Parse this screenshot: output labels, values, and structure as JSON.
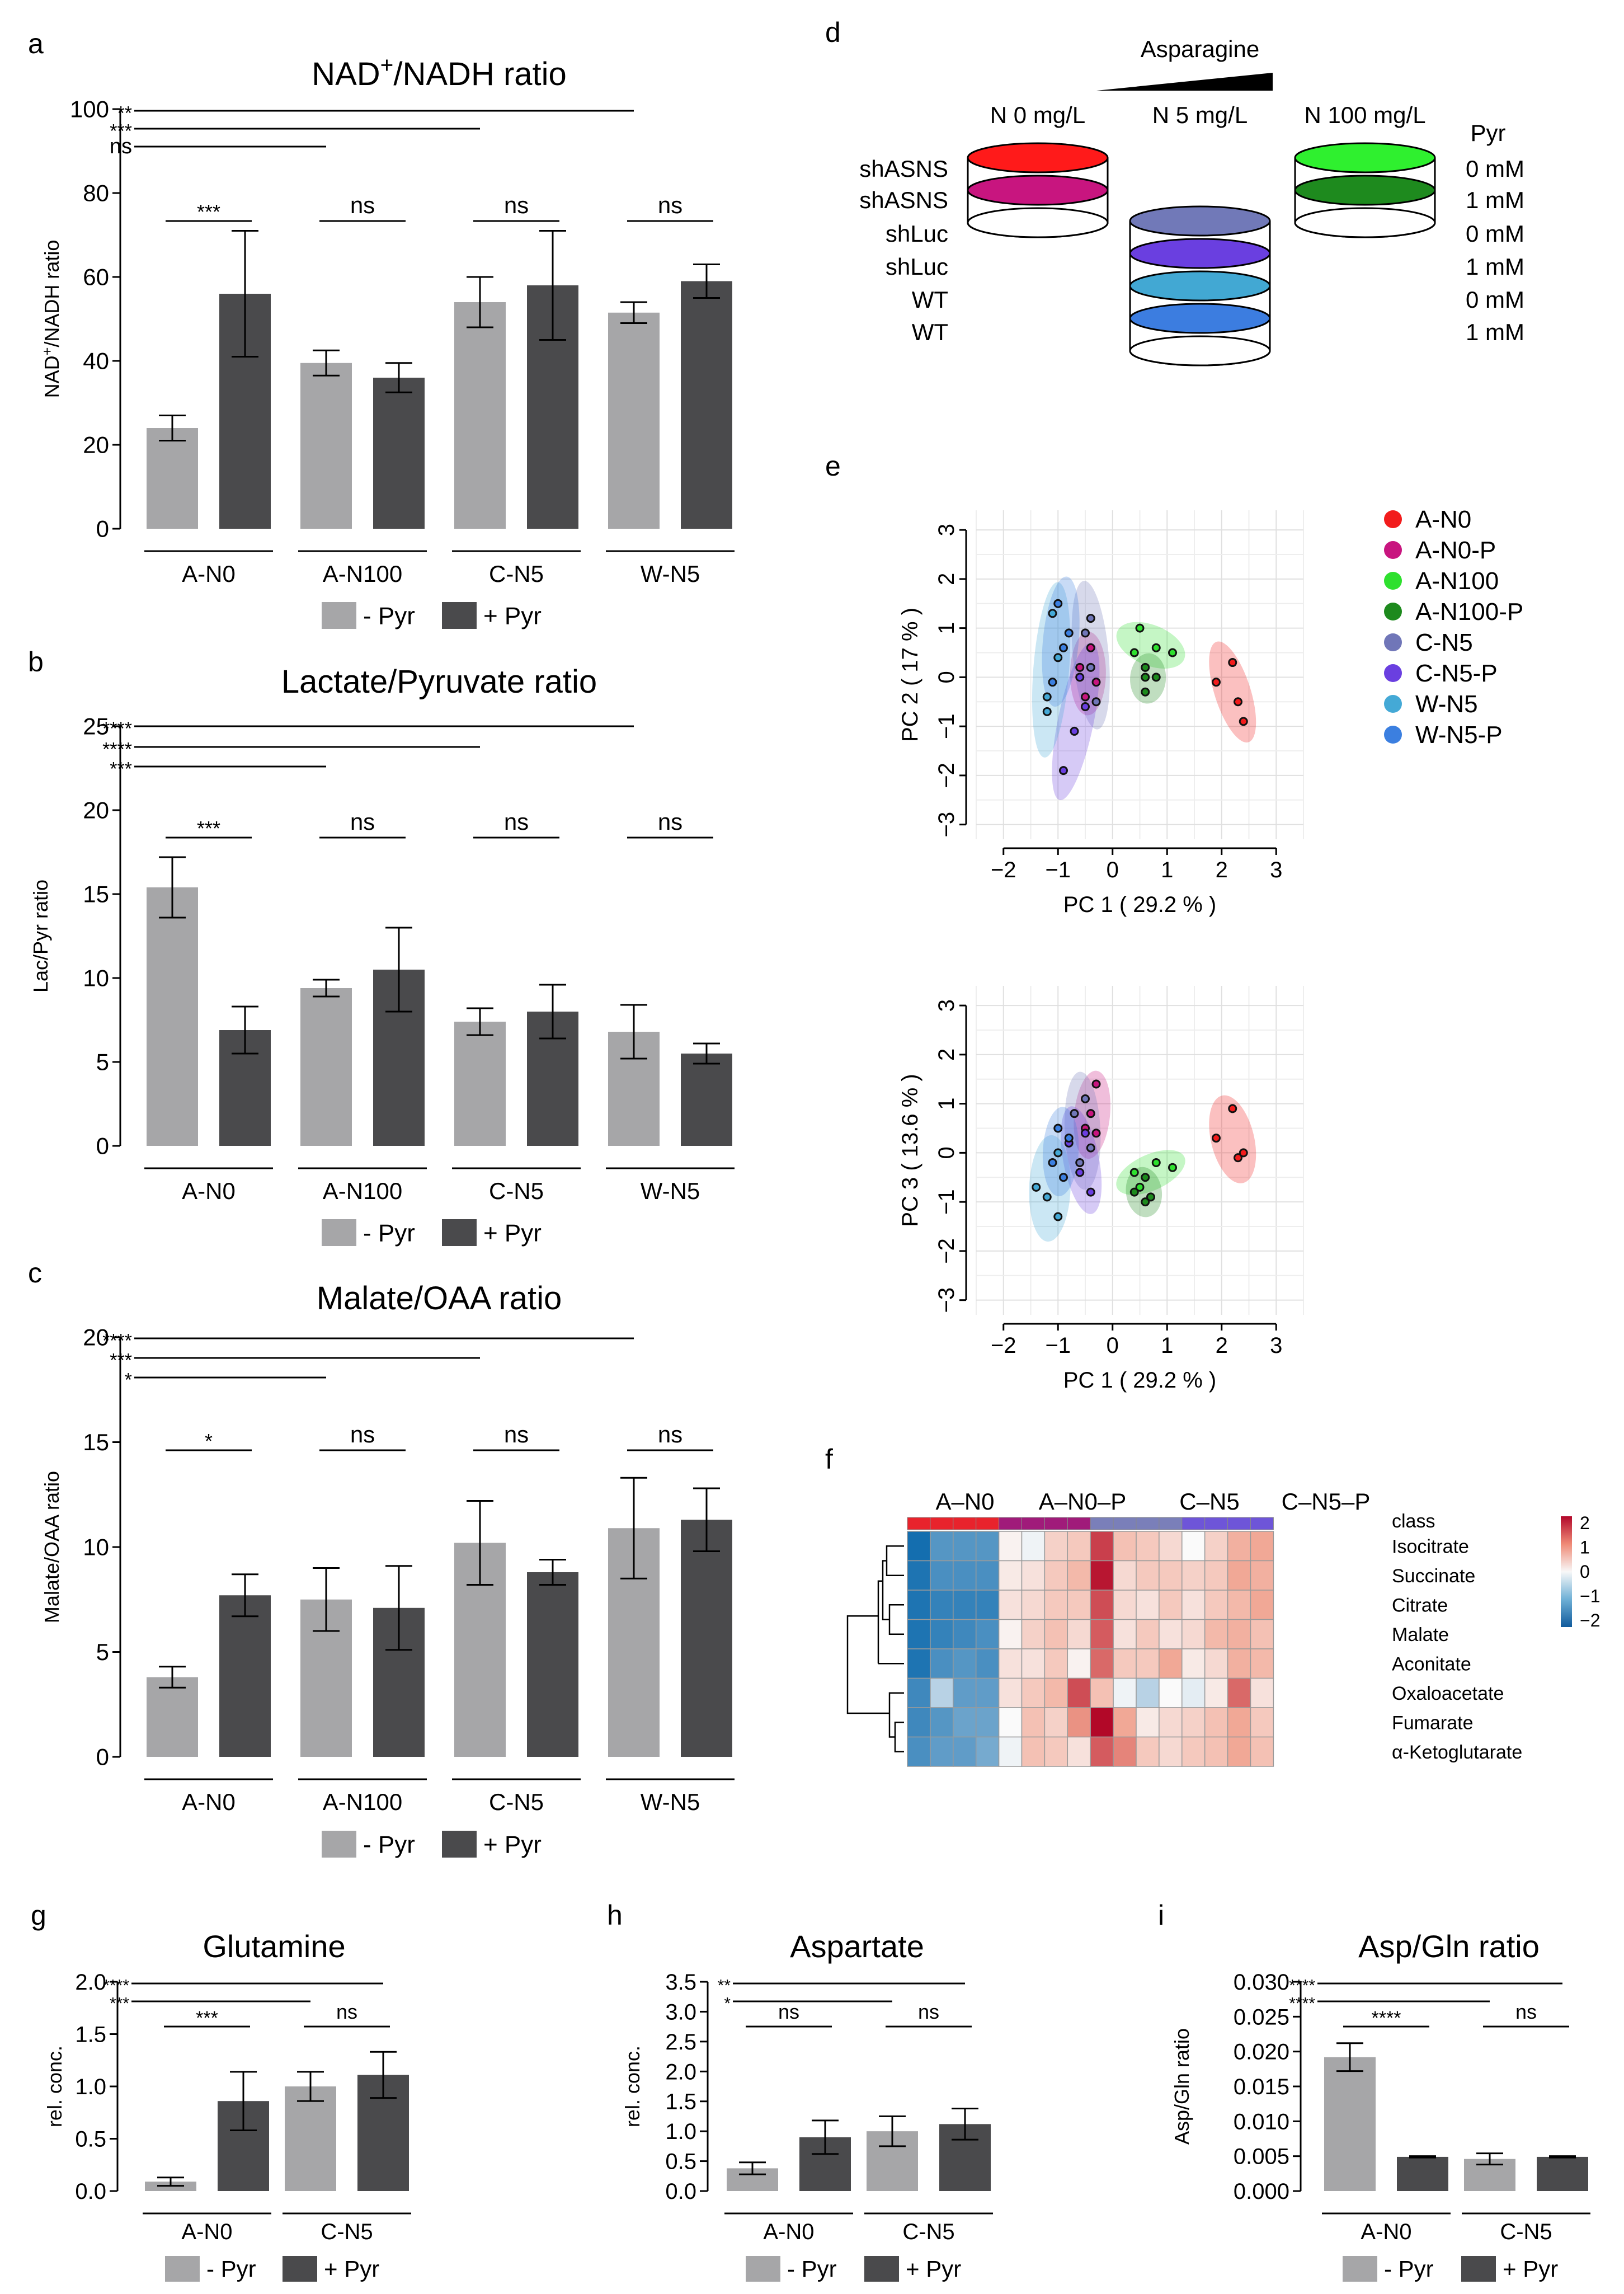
{
  "colors": {
    "minus_pyr": "#a6a6a8",
    "plus_pyr": "#4a4a4c"
  },
  "chart_data": [
    {
      "id": "a",
      "panel_label": "a",
      "type": "bar",
      "title_main": "NAD",
      "title_sup": "+",
      "title_rest": "/NADH ratio",
      "ylabel_main": "NAD",
      "ylabel_sup": "+",
      "ylabel_rest": "/NADH ratio",
      "ylim": [
        0,
        100
      ],
      "yticks": [
        "0",
        "20",
        "40",
        "60",
        "80",
        "100"
      ],
      "ytick_values": [
        0,
        20,
        40,
        60,
        80,
        100
      ],
      "categories": [
        "A-N0",
        "A-N100",
        "C-N5",
        "W-N5"
      ],
      "series": [
        {
          "name": "- Pyr",
          "values": [
            24,
            39.5,
            54,
            51.5
          ],
          "errors": [
            3,
            3,
            6,
            2.5
          ]
        },
        {
          "name": "+ Pyr",
          "values": [
            56,
            36,
            58,
            59
          ],
          "errors": [
            15,
            3.5,
            13,
            4
          ]
        }
      ],
      "sig_within": [
        "***",
        "ns",
        "ns",
        "ns"
      ],
      "sig_vs_first": [
        {
          "target": "W-N5",
          "label": "**"
        },
        {
          "target": "C-N5",
          "label": "***"
        },
        {
          "target": "A-N100",
          "label": "ns"
        }
      ],
      "legend": [
        "- Pyr",
        "+ Pyr"
      ]
    },
    {
      "id": "b",
      "panel_label": "b",
      "type": "bar",
      "title_main": "Lactate/Pyruvate ratio",
      "ylabel_main": "Lac/Pyr ratio",
      "ylim": [
        0,
        25
      ],
      "yticks": [
        "0",
        "5",
        "10",
        "15",
        "20",
        "25"
      ],
      "ytick_values": [
        0,
        5,
        10,
        15,
        20,
        25
      ],
      "categories": [
        "A-N0",
        "A-N100",
        "C-N5",
        "W-N5"
      ],
      "series": [
        {
          "name": "- Pyr",
          "values": [
            15.4,
            9.4,
            7.4,
            6.8
          ],
          "errors": [
            1.8,
            0.5,
            0.8,
            1.6
          ]
        },
        {
          "name": "+ Pyr",
          "values": [
            6.9,
            10.5,
            8,
            5.5
          ],
          "errors": [
            1.4,
            2.5,
            1.6,
            0.6
          ]
        }
      ],
      "sig_within": [
        "***",
        "ns",
        "ns",
        "ns"
      ],
      "sig_vs_first": [
        {
          "target": "W-N5",
          "label": "****"
        },
        {
          "target": "C-N5",
          "label": "****"
        },
        {
          "target": "A-N100",
          "label": "***"
        }
      ],
      "legend": [
        "- Pyr",
        "+ Pyr"
      ]
    },
    {
      "id": "c",
      "panel_label": "c",
      "type": "bar",
      "title_main": "Malate/OAA ratio",
      "ylabel_main": "Malate/OAA ratio",
      "ylim": [
        0,
        20
      ],
      "yticks": [
        "0",
        "5",
        "10",
        "15",
        "20"
      ],
      "ytick_values": [
        0,
        5,
        10,
        15,
        20
      ],
      "categories": [
        "A-N0",
        "A-N100",
        "C-N5",
        "W-N5"
      ],
      "series": [
        {
          "name": "- Pyr",
          "values": [
            3.8,
            7.5,
            10.2,
            10.9
          ],
          "errors": [
            0.5,
            1.5,
            2,
            2.4
          ]
        },
        {
          "name": "+ Pyr",
          "values": [
            7.7,
            7.1,
            8.8,
            11.3
          ],
          "errors": [
            1,
            2,
            0.6,
            1.5
          ]
        }
      ],
      "sig_within": [
        "*",
        "ns",
        "ns",
        "ns"
      ],
      "sig_vs_first": [
        {
          "target": "W-N5",
          "label": "****"
        },
        {
          "target": "C-N5",
          "label": "***"
        },
        {
          "target": "A-N100",
          "label": "*"
        }
      ],
      "legend": [
        "- Pyr",
        "+ Pyr"
      ]
    },
    {
      "id": "g",
      "panel_label": "g",
      "type": "bar",
      "title_main": "Glutamine",
      "ylabel_main": "rel. conc.",
      "ylim": [
        0,
        2
      ],
      "yticks": [
        "0.0",
        "0.5",
        "1.0",
        "1.5",
        "2.0"
      ],
      "ytick_values": [
        0,
        0.5,
        1,
        1.5,
        2
      ],
      "categories": [
        "A-N0",
        "C-N5"
      ],
      "series": [
        {
          "name": "- Pyr",
          "values": [
            0.09,
            1.0
          ],
          "errors": [
            0.04,
            0.14
          ]
        },
        {
          "name": "+ Pyr",
          "values": [
            0.86,
            1.11
          ],
          "errors": [
            0.28,
            0.22
          ]
        }
      ],
      "sig_within": [
        "***",
        "ns"
      ],
      "sig_vs_first": [
        {
          "target": "C-N5+",
          "label": "****"
        },
        {
          "target": "C-N5",
          "label": "***"
        }
      ],
      "legend": [
        "- Pyr",
        "+ Pyr"
      ]
    },
    {
      "id": "h",
      "panel_label": "h",
      "type": "bar",
      "title_main": "Aspartate",
      "ylabel_main": "rel. conc.",
      "ylim": [
        0,
        3.5
      ],
      "yticks": [
        "0.0",
        "0.5",
        "1.0",
        "1.5",
        "2.0",
        "2.5",
        "3.0",
        "3.5"
      ],
      "ytick_values": [
        0,
        0.5,
        1,
        1.5,
        2,
        2.5,
        3,
        3.5
      ],
      "categories": [
        "A-N0",
        "C-N5"
      ],
      "series": [
        {
          "name": "- Pyr",
          "values": [
            0.38,
            1.0
          ],
          "errors": [
            0.1,
            0.25
          ]
        },
        {
          "name": "+ Pyr",
          "values": [
            0.9,
            1.12
          ],
          "errors": [
            0.28,
            0.26
          ]
        }
      ],
      "sig_within": [
        "ns",
        "ns"
      ],
      "sig_vs_first": [
        {
          "target": "C-N5+",
          "label": "**"
        },
        {
          "target": "C-N5",
          "label": "*"
        }
      ],
      "legend": [
        "- Pyr",
        "+ Pyr"
      ]
    },
    {
      "id": "i",
      "panel_label": "i",
      "type": "bar",
      "title_main": "Asp/Gln ratio",
      "ylabel_main": "Asp/Gln ratio",
      "ylim": [
        0,
        0.03
      ],
      "yticks": [
        "0.000",
        "0.005",
        "0.010",
        "0.015",
        "0.020",
        "0.025",
        "0.030"
      ],
      "ytick_values": [
        0,
        0.005,
        0.01,
        0.015,
        0.02,
        0.025,
        0.03
      ],
      "categories": [
        "A-N0",
        "C-N5"
      ],
      "series": [
        {
          "name": "- Pyr",
          "values": [
            0.0192,
            0.0046
          ],
          "errors": [
            0.002,
            0.0008
          ]
        },
        {
          "name": "+ Pyr",
          "values": [
            0.0049,
            0.0049
          ],
          "errors": [
            0.0001,
            0.0001
          ]
        }
      ],
      "sig_within": [
        "****",
        "ns"
      ],
      "sig_vs_first": [
        {
          "target": "C-N5+",
          "label": "****"
        },
        {
          "target": "C-N5",
          "label": "****"
        }
      ],
      "legend": [
        "- Pyr",
        "+ Pyr"
      ]
    },
    {
      "id": "e1",
      "type": "scatter",
      "xlabel": "PC 1 ( 29.2 % )",
      "ylabel": "PC 2 ( 17 % )",
      "xlim": [
        -2.5,
        3.5
      ],
      "ylim": [
        -3.3,
        3.4
      ],
      "xticks": [
        "−2",
        "−1",
        "0",
        "1",
        "2",
        "3"
      ],
      "xtick_values": [
        -2,
        -1,
        0,
        1,
        2,
        3
      ],
      "yticks": [
        "3",
        "2",
        "1",
        "0",
        "−1",
        "−2",
        "−3"
      ],
      "ytick_values": [
        3,
        2,
        1,
        0,
        -1,
        -2,
        -3
      ],
      "groups": [
        {
          "name": "A-N0",
          "points": [
            [
              1.9,
              -0.1
            ],
            [
              2.2,
              0.3
            ],
            [
              2.4,
              -0.9
            ],
            [
              2.3,
              -0.5
            ]
          ]
        },
        {
          "name": "A-N0-P",
          "points": [
            [
              -0.4,
              0.6
            ],
            [
              -0.5,
              -0.4
            ],
            [
              -0.3,
              -0.1
            ],
            [
              -0.6,
              0.2
            ]
          ]
        },
        {
          "name": "A-N100",
          "points": [
            [
              0.5,
              1.0
            ],
            [
              0.8,
              0.6
            ],
            [
              1.1,
              0.5
            ],
            [
              0.4,
              0.5
            ]
          ]
        },
        {
          "name": "A-N100-P",
          "points": [
            [
              0.6,
              0.2
            ],
            [
              0.8,
              0.0
            ],
            [
              0.6,
              0.0
            ],
            [
              0.6,
              -0.3
            ]
          ]
        },
        {
          "name": "C-N5",
          "points": [
            [
              -0.5,
              0.9
            ],
            [
              -0.4,
              0.2
            ],
            [
              -0.3,
              -0.5
            ],
            [
              -0.4,
              1.2
            ]
          ]
        },
        {
          "name": "C-N5-P",
          "points": [
            [
              -0.9,
              -1.9
            ],
            [
              -0.7,
              -1.1
            ],
            [
              -0.5,
              -0.6
            ],
            [
              -0.6,
              0.0
            ]
          ]
        },
        {
          "name": "W-N5",
          "points": [
            [
              -1.2,
              -0.4
            ],
            [
              -1.2,
              -0.7
            ],
            [
              -1.0,
              0.4
            ],
            [
              -1.1,
              1.3
            ]
          ]
        },
        {
          "name": "W-N5-P",
          "points": [
            [
              -1.0,
              1.5
            ],
            [
              -0.9,
              0.6
            ],
            [
              -1.1,
              -0.1
            ],
            [
              -0.8,
              0.9
            ]
          ]
        }
      ]
    },
    {
      "id": "e2",
      "type": "scatter",
      "xlabel": "PC 1 ( 29.2 % )",
      "ylabel": "PC 3 ( 13.6 % )",
      "xlim": [
        -2.5,
        3.5
      ],
      "ylim": [
        -3.3,
        3.4
      ],
      "xticks": [
        "−2",
        "−1",
        "0",
        "1",
        "2",
        "3"
      ],
      "xtick_values": [
        -2,
        -1,
        0,
        1,
        2,
        3
      ],
      "yticks": [
        "3",
        "2",
        "1",
        "0",
        "−1",
        "−2",
        "−3"
      ],
      "ytick_values": [
        3,
        2,
        1,
        0,
        -1,
        -2,
        -3
      ],
      "groups": [
        {
          "name": "A-N0",
          "points": [
            [
              2.2,
              0.9
            ],
            [
              1.9,
              0.3
            ],
            [
              2.4,
              0.0
            ],
            [
              2.3,
              -0.1
            ]
          ]
        },
        {
          "name": "A-N0-P",
          "points": [
            [
              -0.3,
              1.4
            ],
            [
              -0.4,
              0.8
            ],
            [
              -0.3,
              0.4
            ],
            [
              -0.5,
              0.5
            ]
          ]
        },
        {
          "name": "A-N100",
          "points": [
            [
              1.1,
              -0.3
            ],
            [
              0.8,
              -0.2
            ],
            [
              0.5,
              -0.7
            ],
            [
              0.4,
              -0.4
            ]
          ]
        },
        {
          "name": "A-N100-P",
          "points": [
            [
              0.6,
              -0.5
            ],
            [
              0.7,
              -0.9
            ],
            [
              0.4,
              -0.8
            ],
            [
              0.6,
              -1.0
            ]
          ]
        },
        {
          "name": "C-N5",
          "points": [
            [
              -0.5,
              1.1
            ],
            [
              -0.4,
              0.1
            ],
            [
              -0.6,
              -0.2
            ],
            [
              -0.7,
              0.8
            ]
          ]
        },
        {
          "name": "C-N5-P",
          "points": [
            [
              -0.4,
              -0.8
            ],
            [
              -0.6,
              -0.4
            ],
            [
              -0.5,
              0.4
            ],
            [
              -0.8,
              0.2
            ]
          ]
        },
        {
          "name": "W-N5",
          "points": [
            [
              -1.0,
              -1.3
            ],
            [
              -1.2,
              -0.9
            ],
            [
              -1.4,
              -0.7
            ],
            [
              -1.0,
              0.0
            ]
          ]
        },
        {
          "name": "W-N5-P",
          "points": [
            [
              -0.9,
              -0.5
            ],
            [
              -1.1,
              -0.2
            ],
            [
              -0.8,
              0.3
            ],
            [
              -1.0,
              0.5
            ]
          ]
        }
      ]
    },
    {
      "id": "f",
      "type": "heatmap",
      "class_labels": [
        "A–N0",
        "A–N0–P",
        "C–N5",
        "C–N5–P"
      ],
      "row_header": "class",
      "rows": [
        "Isocitrate",
        "Succinate",
        "Citrate",
        "Malate",
        "Aconitate",
        "Oxaloacetate",
        "Fumarate",
        "α-Ketoglutarate"
      ],
      "values": [
        [
          -2.2,
          -1.5,
          -1.5,
          -1.5,
          0.1,
          -0.1,
          0.5,
          0.6,
          1.8,
          0.7,
          0.6,
          0.4,
          0.0,
          0.5,
          0.9,
          1.0
        ],
        [
          -2.0,
          -1.6,
          -1.6,
          -1.6,
          0.2,
          0.3,
          0.6,
          0.8,
          2.1,
          0.4,
          0.6,
          0.6,
          0.5,
          0.6,
          1.0,
          0.9
        ],
        [
          -2.0,
          -1.8,
          -1.8,
          -1.8,
          0.3,
          0.4,
          0.6,
          0.6,
          1.7,
          0.4,
          0.3,
          0.6,
          0.3,
          0.6,
          0.8,
          1.0
        ],
        [
          -2.0,
          -1.8,
          -1.7,
          -1.6,
          0.1,
          0.5,
          0.7,
          0.4,
          1.6,
          0.3,
          0.6,
          0.3,
          0.4,
          0.8,
          0.9,
          0.7
        ],
        [
          -2.0,
          -1.6,
          -1.5,
          -1.6,
          0.3,
          0.3,
          0.6,
          0.1,
          1.5,
          0.6,
          0.6,
          1.0,
          0.2,
          0.4,
          0.9,
          0.8
        ],
        [
          -1.7,
          -0.6,
          -1.4,
          -1.4,
          0.3,
          0.6,
          0.8,
          1.7,
          0.7,
          -0.1,
          -0.6,
          0.0,
          -0.2,
          0.2,
          1.5,
          0.3
        ],
        [
          -1.7,
          -1.5,
          -1.3,
          -1.3,
          0.0,
          0.7,
          0.5,
          1.2,
          2.2,
          1.0,
          0.2,
          0.4,
          0.5,
          0.7,
          1.0,
          0.6
        ],
        [
          -1.6,
          -1.4,
          -1.4,
          -1.2,
          -0.1,
          0.7,
          0.6,
          0.3,
          1.6,
          1.3,
          0.6,
          0.4,
          0.6,
          0.7,
          1.0,
          0.7
        ]
      ],
      "scale_ticks": [
        "2",
        "1",
        "0",
        "−1",
        "−2"
      ]
    }
  ],
  "panel_labels": {
    "d": "d",
    "e": "e",
    "f": "f"
  },
  "panel_d": {
    "header": "Asparagine",
    "columns": [
      "N 0 mg/L",
      "N 5 mg/L",
      "N 100 mg/L"
    ],
    "pyr_header": "Pyr",
    "left_labels": [
      "shASNS",
      "shASNS",
      "shLuc",
      "shLuc",
      "WT",
      "WT"
    ],
    "right_labels": [
      "0 mM",
      "1 mM",
      "0 mM",
      "1 mM",
      "0 mM",
      "1 mM"
    ],
    "disk_colors": [
      "#ff1a1a",
      "#c8157f",
      "#7179b8",
      "#6a3fe0",
      "#42a8d3",
      "#3c7de0",
      "#2ff02f",
      "#1e8a1e"
    ]
  },
  "pca_legend": {
    "names": [
      "A-N0",
      "A-N0-P",
      "A-N100",
      "A-N100-P",
      "C-N5",
      "C-N5-P",
      "W-N5",
      "W-N5-P"
    ],
    "colors": [
      "#f21c1c",
      "#c8157f",
      "#2ee02e",
      "#1d8a1d",
      "#7076b8",
      "#6a3fe0",
      "#44a9d6",
      "#3b7fe0"
    ]
  }
}
